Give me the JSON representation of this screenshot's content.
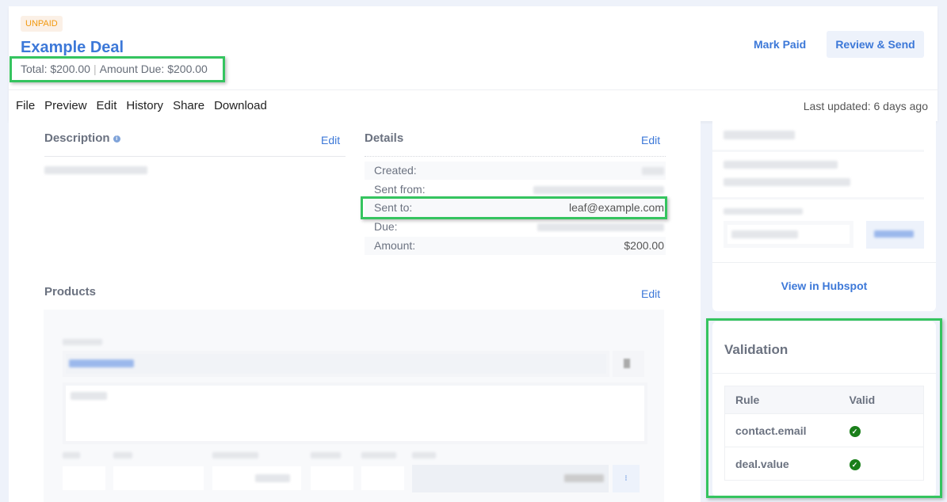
{
  "header": {
    "status_badge": "UNPAID",
    "title": "Example Deal",
    "total": "Total: $200.00",
    "separator": "|",
    "amount_due": "Amount Due: $200.00",
    "mark_paid": "Mark Paid",
    "review_send": "Review & Send"
  },
  "menu": {
    "items": [
      "File",
      "Preview",
      "Edit",
      "History",
      "Share",
      "Download"
    ],
    "last_updated": "Last updated: 6 days ago"
  },
  "description": {
    "heading": "Description",
    "edit": "Edit",
    "info_icon": "info-icon"
  },
  "details": {
    "heading": "Details",
    "edit": "Edit",
    "rows": [
      {
        "label": "Created:",
        "value": ""
      },
      {
        "label": "Sent from:",
        "value": ""
      },
      {
        "label": "Sent to:",
        "value": "leaf@example.com"
      },
      {
        "label": "Due:",
        "value": ""
      },
      {
        "label": "Amount:",
        "value": "$200.00"
      }
    ]
  },
  "products": {
    "heading": "Products",
    "edit": "Edit"
  },
  "sidebar": {
    "view_hubspot": "View in Hubspot"
  },
  "validation": {
    "heading": "Validation",
    "columns": [
      "Rule",
      "Valid"
    ],
    "rows": [
      {
        "rule": "contact.email",
        "valid": true
      },
      {
        "rule": "deal.value",
        "valid": true
      }
    ],
    "check_color": "#1a7f1a",
    "check_icon": "check-circle-icon"
  },
  "colors": {
    "accent": "#3c78d8",
    "highlight": "#35c45f",
    "badge": "#f2990f"
  }
}
